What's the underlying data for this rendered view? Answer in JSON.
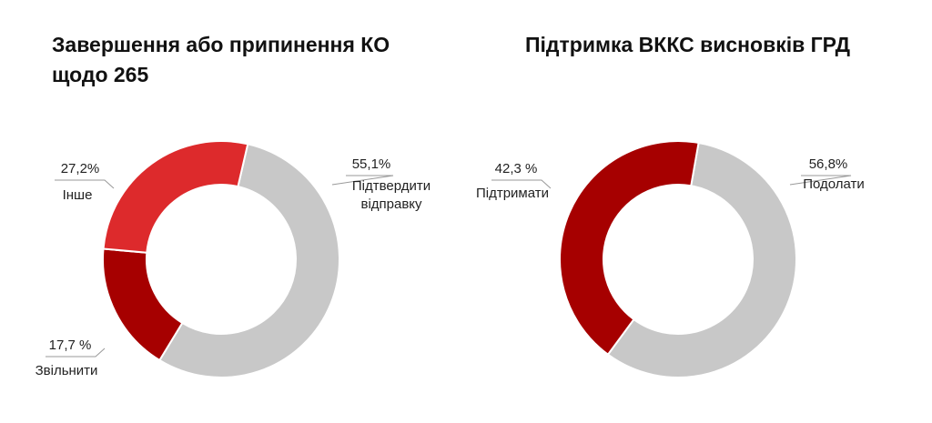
{
  "chart_data": [
    {
      "type": "pie",
      "title": "Завершення або припинення КО щодо 265",
      "categories": [
        "Підтвердити відправку",
        "Звільнити",
        "Інше"
      ],
      "values": [
        55.1,
        17.7,
        27.2
      ],
      "value_labels": [
        "55,1%",
        "17,7 %",
        "27,2%"
      ],
      "colors": [
        "#c8c8c8",
        "#a60000",
        "#dd2a2c"
      ]
    },
    {
      "type": "pie",
      "title": "Підтримка ВККС висновків ГРД",
      "categories": [
        "Подолати",
        "Підтримати"
      ],
      "values": [
        56.8,
        42.3
      ],
      "value_labels": [
        "56,8%",
        "42,3 %"
      ],
      "colors": [
        "#c8c8c8",
        "#a60000"
      ]
    }
  ]
}
